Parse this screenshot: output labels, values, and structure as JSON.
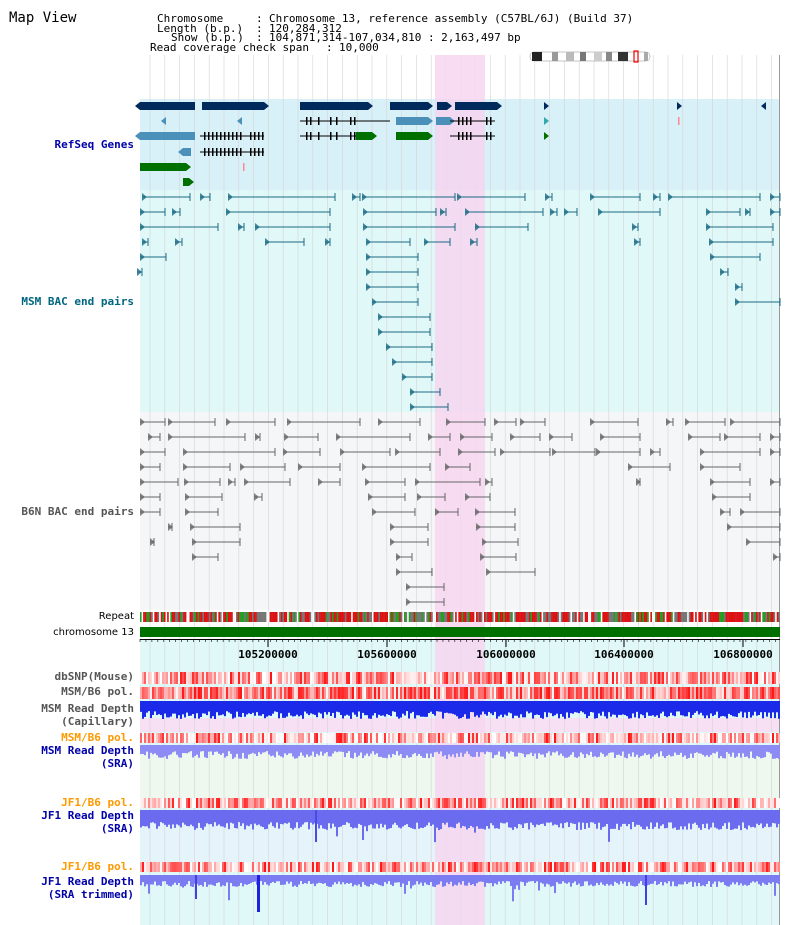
{
  "title": "Map View",
  "info": {
    "chromosome_key": "Chromosome",
    "chromosome_val": "Chromosome 13, reference assembly (C57BL/6J) (Build 37)",
    "length_key": "Length (b.p.)",
    "length_val": "120,284,312",
    "show_key": "Show (b.p.)",
    "show_val": "104,871,314-107,034,810 : 2,163,497 bp",
    "coverage_key": "Read coverage check span",
    "coverage_val": "10,000"
  },
  "tracks": {
    "refseq": {
      "label": "RefSeq Genes",
      "color": "#0000aa"
    },
    "msm_bac": {
      "label": "MSM BAC end pairs",
      "color": "#006680"
    },
    "b6n_bac": {
      "label": "B6N BAC end pairs",
      "color": "#555555"
    },
    "repeat": {
      "label": "Repeat"
    },
    "chromosome": {
      "label": "chromosome 13"
    },
    "dbsnp": {
      "label": "dbSNP(Mouse)",
      "color": "#555555"
    },
    "msm_b6_pol": {
      "label": "MSM/B6 pol.",
      "color": "#555555"
    },
    "msm_depth_cap": {
      "label_line1": "MSM Read Depth",
      "label_line2": "(Capillary)",
      "color": "#555555"
    },
    "msm_b6_pol2": {
      "label": "MSM/B6 pol.",
      "color": "#ff9900"
    },
    "msm_depth_sra": {
      "label_line1": "MSM Read Depth",
      "label_line2": "(SRA)",
      "color": "#0000aa"
    },
    "jf1_b6_pol": {
      "label": "JF1/B6 pol.",
      "color": "#ff9900"
    },
    "jf1_depth_sra": {
      "label_line1": "JF1 Read Depth",
      "label_line2": "(SRA)",
      "color": "#0000aa"
    },
    "jf1_b6_pol2": {
      "label": "JF1/B6 pol.",
      "color": "#ff9900"
    },
    "jf1_depth_trim": {
      "label_line1": "JF1 Read Depth",
      "label_line2": "(SRA trimmed)",
      "color": "#0000aa"
    }
  },
  "axis": {
    "ticks": [
      "105200000",
      "105600000",
      "106000000",
      "106400000",
      "106800000"
    ]
  },
  "colors": {
    "highlight": "#f8d8f0",
    "refseq_bg": "#d8f0f8",
    "msm_bg": "#e0f8f8",
    "b6n_bg": "#f4f6f8",
    "sra_bg": "#eef8ee",
    "gene_dark": "#002a5c",
    "gene_mid": "#4a90b8",
    "gene_green": "#007000",
    "chromosome_bar": "#007000"
  }
}
